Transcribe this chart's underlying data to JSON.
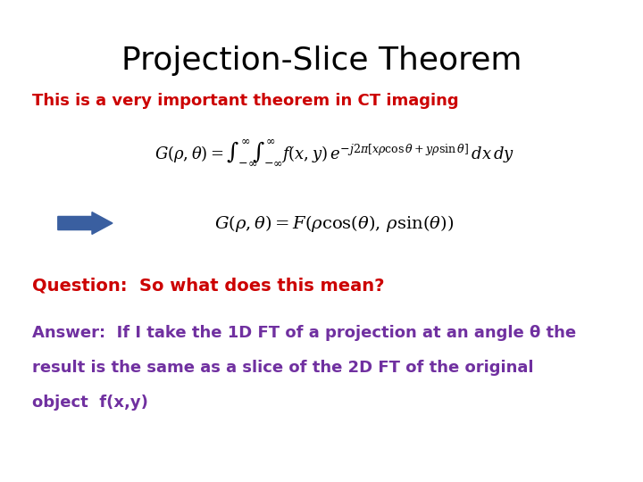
{
  "title": "Projection-Slice Theorem",
  "title_fontsize": 26,
  "title_color": "#000000",
  "subtitle": "This is a very important theorem in CT imaging",
  "subtitle_color": "#cc0000",
  "subtitle_fontsize": 13,
  "eq1_fontsize": 13,
  "eq2_fontsize": 14,
  "arrow_color": "#3a5fa0",
  "question": "Question:  So what does this mean?",
  "question_color": "#cc0000",
  "question_fontsize": 14,
  "answer_line1": "Answer:  If I take the 1D FT of a projection at an angle θ the",
  "answer_line2": "result is the same as a slice of the 2D FT of the original",
  "answer_line3": "object  f(x,y)",
  "answer_color": "#7030a0",
  "answer_fontsize": 13,
  "background_color": "#ffffff"
}
